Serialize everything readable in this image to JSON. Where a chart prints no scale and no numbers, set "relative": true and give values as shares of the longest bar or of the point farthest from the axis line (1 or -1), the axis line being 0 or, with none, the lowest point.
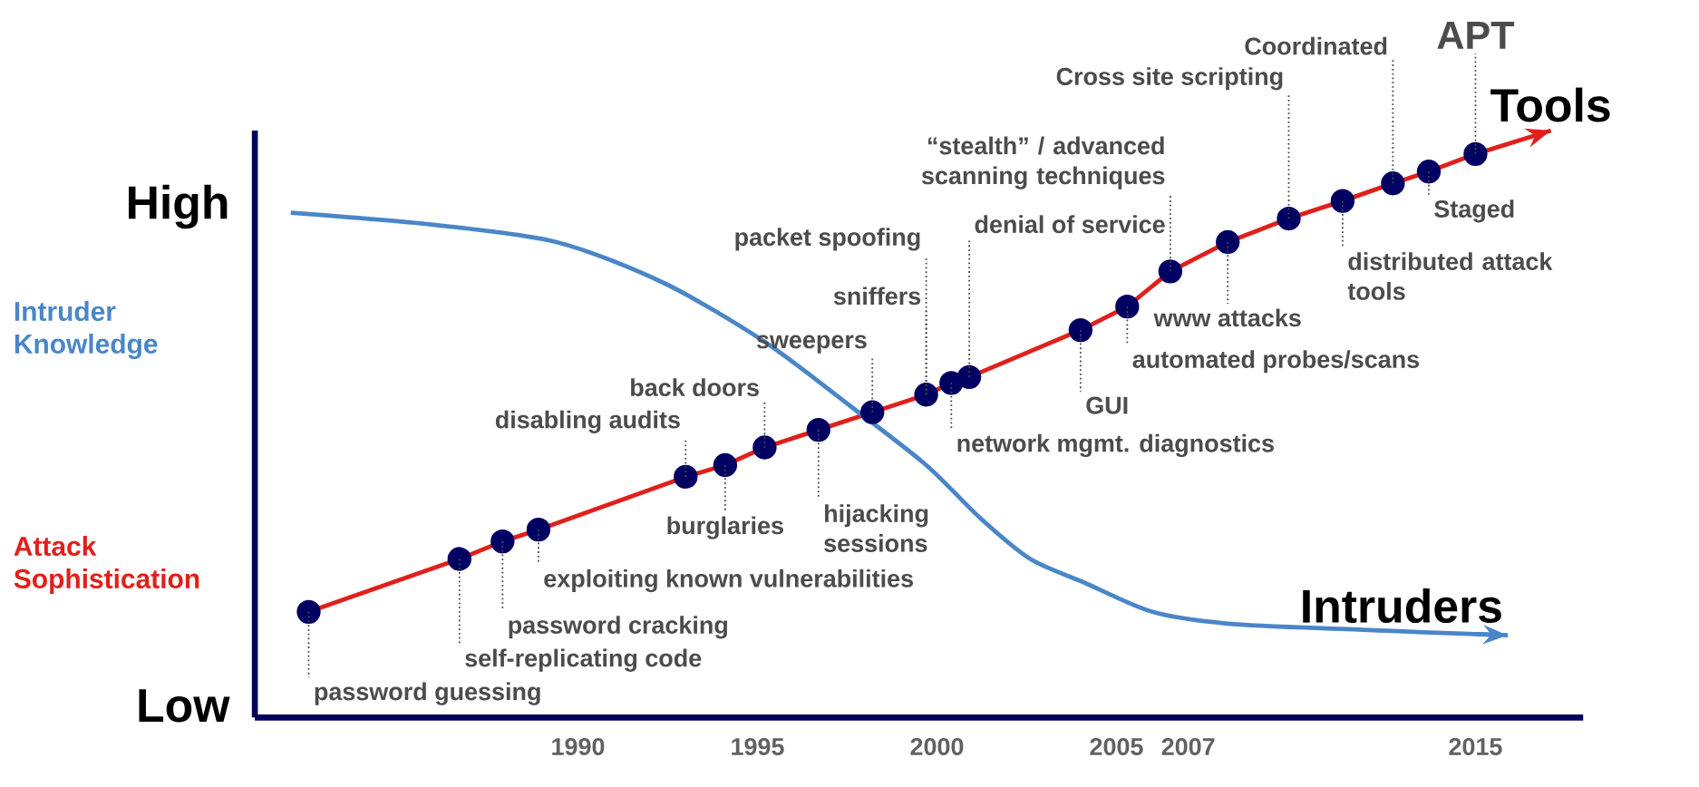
{
  "chart_data": {
    "type": "line",
    "relative": true,
    "xlim": [
      1981,
      2018
    ],
    "xticks": [
      1990,
      1995,
      2000,
      2005,
      2007,
      2015
    ],
    "series": [
      {
        "name": "Attack Sophistication",
        "color": "#e0201b",
        "marker": "circle",
        "x": [
          1982.5,
          1986.7,
          1987.9,
          1988.9,
          1993.0,
          1994.1,
          1995.2,
          1996.7,
          1998.2,
          1999.7,
          2000.4,
          2000.9,
          2004.0,
          2005.3,
          2006.5,
          2008.1,
          2009.8,
          2011.3,
          2012.7,
          2013.7,
          2015.0,
          2017.1
        ],
        "values": [
          0.18,
          0.27,
          0.3,
          0.32,
          0.41,
          0.43,
          0.46,
          0.49,
          0.52,
          0.55,
          0.57,
          0.58,
          0.66,
          0.7,
          0.76,
          0.81,
          0.85,
          0.88,
          0.91,
          0.93,
          0.96,
          1.0
        ]
      },
      {
        "name": "Intruder Knowledge",
        "color": "#4a86c8",
        "marker": "none",
        "x": [
          1982.0,
          1985.9,
          1989.4,
          1992.4,
          1995.2,
          1997.6,
          1999.7,
          2001.2,
          2002.6,
          2004.1,
          2006.0,
          2008.1,
          2011.6,
          2015.9
        ],
        "values": [
          0.86,
          0.84,
          0.81,
          0.74,
          0.64,
          0.53,
          0.43,
          0.34,
          0.27,
          0.23,
          0.18,
          0.16,
          0.15,
          0.14
        ]
      }
    ],
    "annotations": [
      {
        "text": "password guessing",
        "x": 1982.5,
        "y": 0.18
      },
      {
        "text": "self-replicating code",
        "x": 1986.7,
        "y": 0.27
      },
      {
        "text": "password cracking",
        "x": 1987.9,
        "y": 0.3
      },
      {
        "text": "exploiting known vulnerabilities",
        "x": 1988.9,
        "y": 0.32
      },
      {
        "text": "disabling audits",
        "x": 1993.0,
        "y": 0.41
      },
      {
        "text": "burglaries",
        "x": 1994.1,
        "y": 0.43
      },
      {
        "text": "back doors",
        "x": 1995.2,
        "y": 0.46
      },
      {
        "text": "hijacking sessions",
        "x": 1996.7,
        "y": 0.49
      },
      {
        "text": "sweepers",
        "x": 1998.2,
        "y": 0.52
      },
      {
        "text": "sniffers",
        "x": 1999.7,
        "y": 0.55
      },
      {
        "text": "packet spoofing",
        "x": 1999.7,
        "y": 0.55
      },
      {
        "text": "network mgmt. diagnostics",
        "x": 2000.4,
        "y": 0.57
      },
      {
        "text": "denial of service",
        "x": 2000.9,
        "y": 0.58
      },
      {
        "text": "GUI",
        "x": 2004.0,
        "y": 0.66
      },
      {
        "text": "automated probes/scans",
        "x": 2005.3,
        "y": 0.7
      },
      {
        "text": "“stealth” / advanced scanning techniques",
        "x": 2006.5,
        "y": 0.76
      },
      {
        "text": "www attacks",
        "x": 2008.1,
        "y": 0.81
      },
      {
        "text": "Cross site scripting",
        "x": 2009.8,
        "y": 0.85
      },
      {
        "text": "distributed attack tools",
        "x": 2011.3,
        "y": 0.88
      },
      {
        "text": "Coordinated",
        "x": 2012.7,
        "y": 0.91
      },
      {
        "text": "Staged",
        "x": 2013.7,
        "y": 0.93
      },
      {
        "text": "APT",
        "x": 2015.0,
        "y": 0.96
      },
      {
        "text": "Tools",
        "x": 2017.1,
        "y": 1.0
      },
      {
        "text": "Intruders",
        "x": 2015.9,
        "y": 0.14
      },
      "High",
      "Low"
    ]
  }
}
